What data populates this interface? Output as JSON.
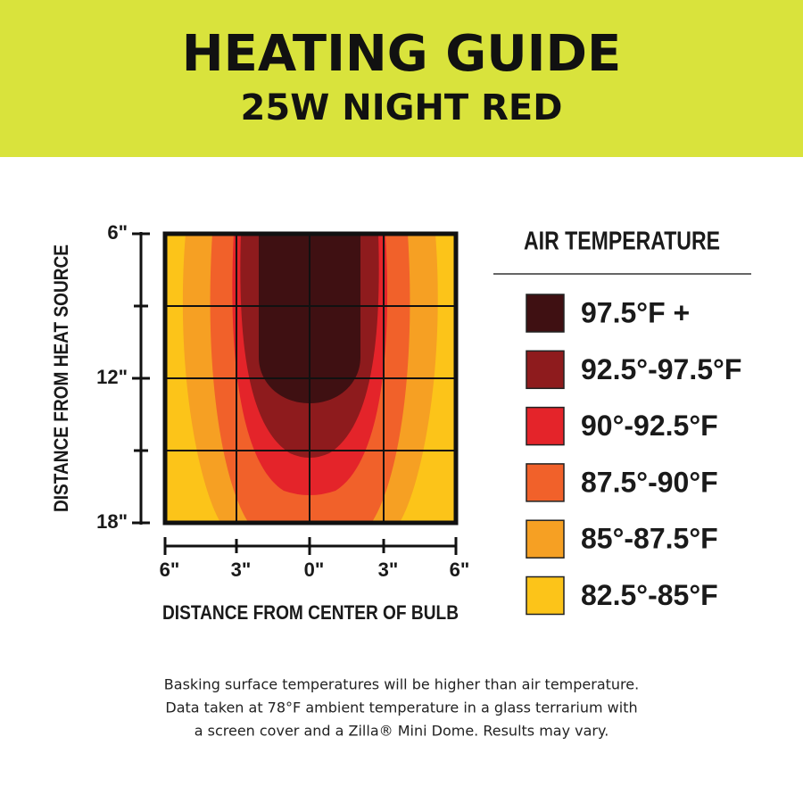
{
  "header": {
    "title": "HEATING GUIDE",
    "subtitle": "25W NIGHT RED"
  },
  "plot": {
    "y_axis_label": "DISTANCE FROM HEAT SOURCE",
    "y_ticks": [
      "6\"",
      "12\"",
      "18\""
    ],
    "x_axis_label": "DISTANCE FROM CENTER OF BULB",
    "x_ticks": [
      "6\"",
      "3\"",
      "0\"",
      "3\"",
      "6\""
    ]
  },
  "legend": {
    "title": "AIR TEMPERATURE",
    "items": [
      {
        "label": "97.5°F +",
        "color": "#3f1012"
      },
      {
        "label": "92.5°-97.5°F",
        "color": "#8e1b1d"
      },
      {
        "label": "90°-92.5°F",
        "color": "#e4242a"
      },
      {
        "label": "87.5°-90°F",
        "color": "#f1612a"
      },
      {
        "label": "85°-87.5°F",
        "color": "#f6a023"
      },
      {
        "label": "82.5°-85°F",
        "color": "#fcc419"
      }
    ]
  },
  "footnote": [
    "Basking surface temperatures will be higher than air temperature.",
    "Data taken at 78°F ambient temperature in a glass terrarium with",
    "a screen cover and a Zilla® Mini Dome. Results may vary."
  ]
}
